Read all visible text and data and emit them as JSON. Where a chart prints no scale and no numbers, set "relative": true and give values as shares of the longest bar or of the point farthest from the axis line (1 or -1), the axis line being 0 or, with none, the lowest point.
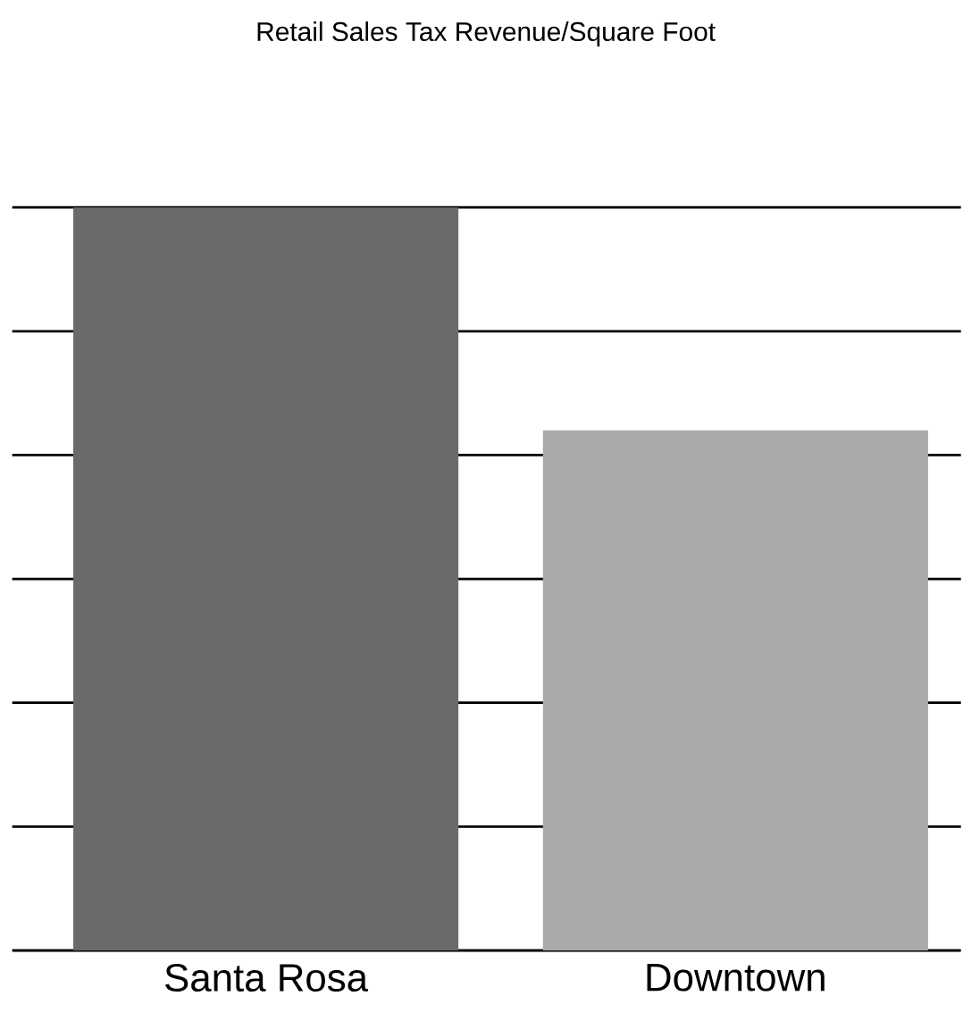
{
  "chart_data": {
    "type": "bar",
    "title": "Retail Sales Tax Revenue/Square Foot",
    "categories": [
      "Santa Rosa",
      "Downtown"
    ],
    "values": [
      1,
      0.7
    ],
    "colors": [
      "#6a6a6a",
      "#a9a9a9"
    ],
    "relative": true,
    "grid": "y"
  }
}
